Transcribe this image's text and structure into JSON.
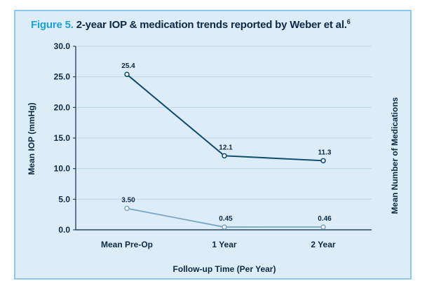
{
  "title": {
    "figure_label": "Figure 5.",
    "text": "2-year IOP & medication trends reported by Weber et al.",
    "superscript": "6"
  },
  "chart_data": {
    "type": "line",
    "categories": [
      "Mean Pre-Op",
      "1 Year",
      "2 Year"
    ],
    "xlabel": "Follow-up Time (Per Year)",
    "ylabel": "Mean IOP (mmHg)",
    "ylabel_right": "Mean Number of Medications",
    "ylim": [
      0,
      30
    ],
    "yticks": [
      "0.0",
      "5.0",
      "10.0",
      "15.0",
      "20.0",
      "25.0",
      "30.0"
    ],
    "grid": true,
    "series": [
      {
        "name": "Mean IOP (mmHg)",
        "values": [
          25.4,
          12.1,
          11.3
        ],
        "labels": [
          "25.4",
          "12.1",
          "11.3"
        ],
        "color": "#0e4a6e"
      },
      {
        "name": "Mean Number of Medications",
        "values": [
          3.5,
          0.45,
          0.46
        ],
        "labels": [
          "3.50",
          "0.45",
          "0.46"
        ],
        "color": "#7aa8c4"
      }
    ]
  },
  "colors": {
    "background": "#dcecf8",
    "border": "#8cc8ec",
    "accent": "#1aa3dd",
    "text": "#0b2a45",
    "grid": "#b9d3e6"
  }
}
